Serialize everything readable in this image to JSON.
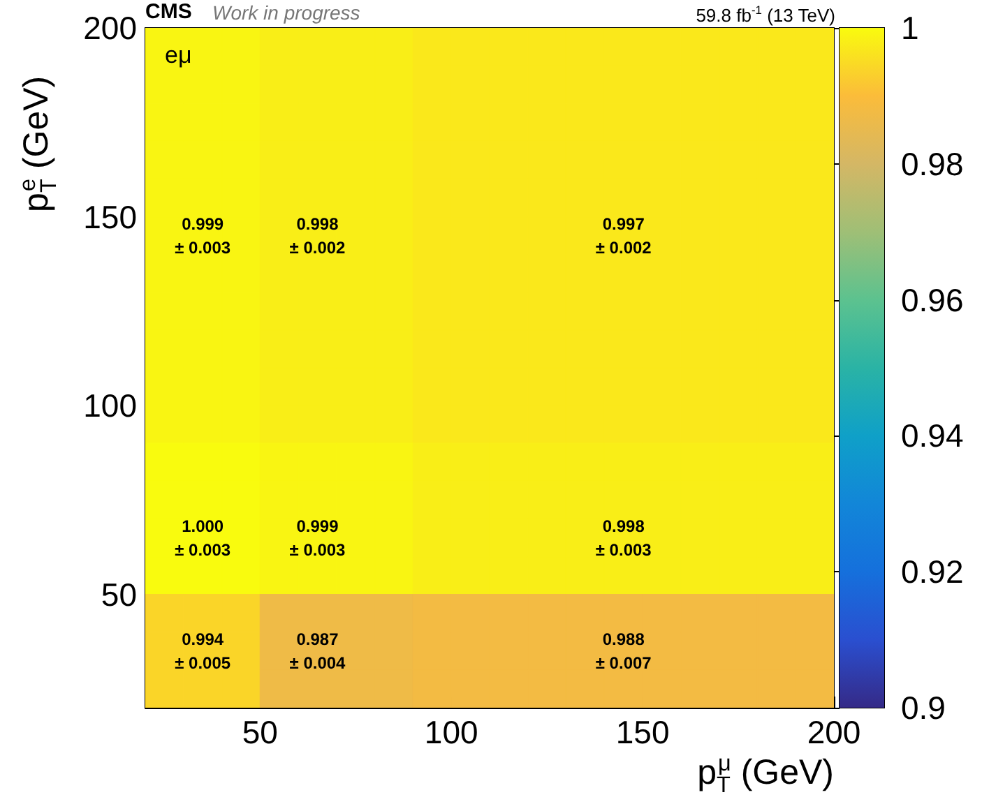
{
  "chart_data": {
    "type": "heatmap",
    "title": "CMS",
    "subtitle": "Work in progress",
    "annotations": [
      "59.8 fb$^{-1}$ (13 TeV)",
      "eμ"
    ],
    "xlabel": "p$_{T}$$^{μ}$ (GeV)",
    "ylabel": "p$_{T}$$^{e}$ (GeV)",
    "xlim": [
      20,
      200
    ],
    "xticks": [
      50,
      100,
      150,
      200
    ],
    "ylim": [
      20,
      200
    ],
    "yticks": [
      50,
      100,
      150,
      200
    ],
    "cells": [
      [
        0.999,
        0.999,
        0.999,
        0.998,
        0.998,
        0.998,
        0.998,
        0.997,
        0.997,
        0.997,
        0.997,
        0.997,
        0.997,
        0.997,
        0.997,
        0.997,
        0.997,
        0.997
      ],
      [
        0.999,
        0.999,
        0.999,
        0.998,
        0.998,
        0.998,
        0.998,
        0.997,
        0.997,
        0.997,
        0.997,
        0.997,
        0.997,
        0.997,
        0.997,
        0.997,
        0.997,
        0.997
      ],
      [
        0.999,
        0.999,
        0.999,
        0.998,
        0.998,
        0.998,
        0.998,
        0.997,
        0.997,
        0.997,
        0.997,
        0.997,
        0.997,
        0.997,
        0.997,
        0.997,
        0.997,
        0.997
      ],
      [
        0.999,
        0.999,
        0.999,
        0.998,
        0.998,
        0.998,
        0.998,
        0.997,
        0.997,
        0.997,
        0.997,
        0.997,
        0.997,
        0.997,
        0.997,
        0.997,
        0.997,
        0.997
      ],
      [
        0.999,
        0.999,
        0.999,
        0.998,
        0.998,
        0.998,
        0.998,
        0.997,
        0.997,
        0.997,
        0.997,
        0.997,
        0.997,
        0.997,
        0.997,
        0.997,
        0.997,
        0.997
      ],
      [
        0.999,
        0.999,
        0.999,
        0.998,
        0.998,
        0.998,
        0.998,
        0.997,
        0.997,
        0.997,
        0.997,
        0.997,
        0.997,
        0.997,
        0.997,
        0.997,
        0.997,
        0.997
      ],
      [
        0.999,
        0.999,
        0.999,
        0.998,
        0.998,
        0.998,
        0.998,
        0.997,
        0.997,
        0.997,
        0.997,
        0.997,
        0.997,
        0.997,
        0.997,
        0.997,
        0.997,
        0.997
      ],
      [
        0.999,
        0.999,
        0.999,
        0.998,
        0.998,
        0.998,
        0.998,
        0.997,
        0.997,
        0.997,
        0.997,
        0.997,
        0.997,
        0.997,
        0.997,
        0.997,
        0.997,
        0.997
      ],
      [
        0.999,
        0.999,
        0.999,
        0.998,
        0.998,
        0.998,
        0.998,
        0.997,
        0.997,
        0.997,
        0.997,
        0.997,
        0.997,
        0.997,
        0.997,
        0.997,
        0.997,
        0.997
      ],
      [
        0.999,
        0.999,
        0.999,
        0.998,
        0.998,
        0.998,
        0.998,
        0.997,
        0.997,
        0.997,
        0.997,
        0.997,
        0.997,
        0.997,
        0.997,
        0.997,
        0.997,
        0.997
      ],
      [
        0.999,
        0.999,
        0.999,
        0.998,
        0.998,
        0.998,
        0.998,
        0.997,
        0.997,
        0.997,
        0.997,
        0.997,
        0.997,
        0.997,
        0.997,
        0.997,
        0.997,
        0.997
      ],
      [
        1.0,
        1.0,
        1.0,
        0.999,
        0.999,
        0.999,
        0.999,
        0.998,
        0.998,
        0.998,
        0.998,
        0.998,
        0.998,
        0.998,
        0.998,
        0.998,
        0.998,
        0.998
      ],
      [
        1.0,
        1.0,
        1.0,
        0.999,
        0.999,
        0.999,
        0.999,
        0.998,
        0.998,
        0.998,
        0.998,
        0.998,
        0.998,
        0.998,
        0.998,
        0.998,
        0.998,
        0.998
      ],
      [
        1.0,
        1.0,
        1.0,
        0.999,
        0.999,
        0.999,
        0.999,
        0.998,
        0.998,
        0.998,
        0.998,
        0.998,
        0.998,
        0.998,
        0.998,
        0.998,
        0.998,
        0.998
      ],
      [
        1.0,
        1.0,
        1.0,
        0.999,
        0.999,
        0.999,
        0.999,
        0.998,
        0.998,
        0.998,
        0.998,
        0.998,
        0.998,
        0.998,
        0.998,
        0.998,
        0.998,
        0.998
      ],
      [
        0.994,
        0.994,
        0.994,
        0.987,
        0.987,
        0.987,
        0.987,
        0.988,
        0.988,
        0.988,
        0.988,
        0.988,
        0.988,
        0.988,
        0.988,
        0.988,
        0.988,
        0.988
      ],
      [
        0.994,
        0.994,
        0.994,
        0.987,
        0.987,
        0.987,
        0.987,
        0.988,
        0.988,
        0.988,
        0.988,
        0.988,
        0.988,
        0.988,
        0.988,
        0.988,
        0.988,
        0.988
      ],
      [
        0.994,
        0.994,
        0.994,
        0.987,
        0.987,
        0.987,
        0.987,
        0.988,
        0.988,
        0.988,
        0.988,
        0.988,
        0.988,
        0.988,
        0.988,
        0.988,
        0.988,
        0.988
      ]
    ],
    "cell_labels": [
      [
        null,
        null,
        null,
        null,
        null,
        null,
        null,
        null,
        null,
        null,
        null,
        null,
        null,
        null,
        null,
        null,
        null,
        null
      ],
      [
        null,
        null,
        null,
        null,
        null,
        null,
        null,
        null,
        null,
        null,
        null,
        null,
        null,
        null,
        null,
        null,
        null,
        null
      ],
      [
        null,
        null,
        null,
        null,
        null,
        null,
        null,
        null,
        null,
        null,
        null,
        null,
        null,
        null,
        null,
        null,
        null,
        null
      ],
      [
        null,
        null,
        null,
        null,
        null,
        null,
        null,
        null,
        null,
        null,
        null,
        null,
        null,
        null,
        null,
        null,
        null,
        null
      ],
      [
        null,
        null,
        null,
        null,
        null,
        null,
        null,
        null,
        null,
        null,
        null,
        null,
        null,
        null,
        null,
        null,
        null,
        null
      ],
      [
        null,
        "0.999\n± 0.003",
        null,
        null,
        "0.998\n± 0.002",
        null,
        null,
        null,
        null,
        null,
        null,
        null,
        "0.997\n± 0.002",
        null,
        null,
        null,
        null,
        null
      ],
      [
        null,
        null,
        null,
        null,
        null,
        null,
        null,
        null,
        null,
        null,
        null,
        null,
        null,
        null,
        null,
        null,
        null,
        null
      ],
      [
        null,
        null,
        null,
        null,
        null,
        null,
        null,
        null,
        null,
        null,
        null,
        null,
        null,
        null,
        null,
        null,
        null,
        null
      ],
      [
        null,
        null,
        null,
        null,
        null,
        null,
        null,
        null,
        null,
        null,
        null,
        null,
        null,
        null,
        null,
        null,
        null,
        null
      ],
      [
        null,
        null,
        null,
        null,
        null,
        null,
        null,
        null,
        null,
        null,
        null,
        null,
        null,
        null,
        null,
        null,
        null,
        null
      ],
      [
        null,
        null,
        null,
        null,
        null,
        null,
        null,
        null,
        null,
        null,
        null,
        null,
        null,
        null,
        null,
        null,
        null,
        null
      ],
      [
        null,
        null,
        null,
        null,
        null,
        null,
        null,
        null,
        null,
        null,
        null,
        null,
        null,
        null,
        null,
        null,
        null,
        null
      ],
      [
        null,
        null,
        null,
        null,
        null,
        null,
        null,
        null,
        null,
        null,
        null,
        null,
        null,
        null,
        null,
        null,
        null,
        null
      ],
      [
        null,
        "1.000\n± 0.003",
        null,
        null,
        "0.999\n± 0.003",
        null,
        null,
        null,
        null,
        null,
        null,
        null,
        "0.998\n± 0.003",
        null,
        null,
        null,
        null,
        null
      ],
      [
        null,
        null,
        null,
        null,
        null,
        null,
        null,
        null,
        null,
        null,
        null,
        null,
        null,
        null,
        null,
        null,
        null,
        null
      ],
      [
        null,
        null,
        null,
        null,
        null,
        null,
        null,
        null,
        null,
        null,
        null,
        null,
        null,
        null,
        null,
        null,
        null,
        null
      ],
      [
        null,
        "0.994\n± 0.005",
        null,
        null,
        "0.987\n± 0.004",
        null,
        null,
        null,
        null,
        null,
        null,
        null,
        "0.988\n± 0.007",
        null,
        null,
        null,
        null,
        null
      ],
      [
        null,
        null,
        null,
        null,
        null,
        null,
        null,
        null,
        null,
        null,
        null,
        null,
        null,
        null,
        null,
        null,
        null,
        null
      ]
    ],
    "clim": [
      0.9,
      1
    ],
    "cticks": [
      0.9,
      0.92,
      0.94,
      0.96,
      0.98,
      1
    ]
  }
}
